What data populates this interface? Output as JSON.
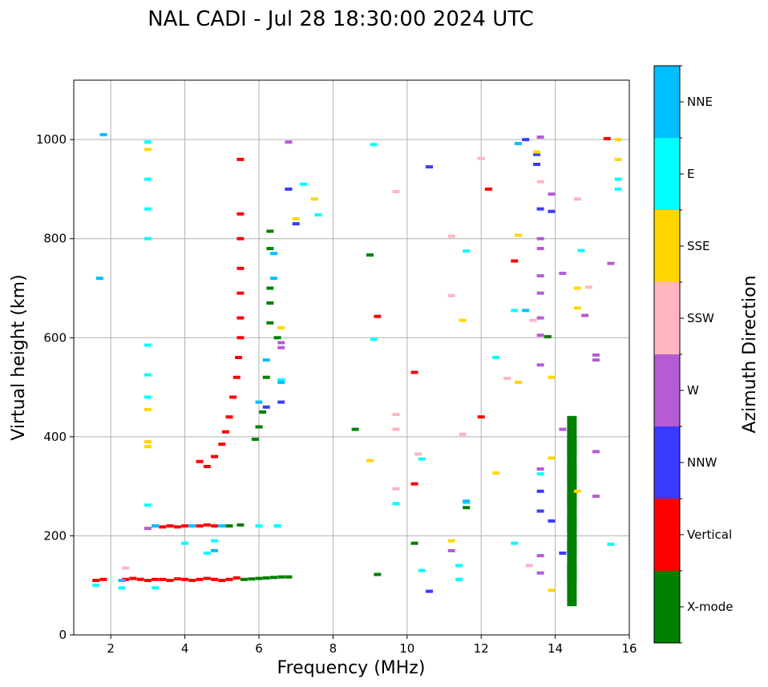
{
  "chart_data": {
    "type": "scatter",
    "title": "NAL CADI - Jul 28 18:30:00 2024 UTC",
    "xlabel": "Frequency (MHz)",
    "ylabel": "Virtual height (km)",
    "xlim": [
      1,
      16
    ],
    "ylim": [
      0,
      1120
    ],
    "xticks": [
      2,
      4,
      6,
      8,
      10,
      12,
      14,
      16
    ],
    "yticks": [
      0,
      200,
      400,
      600,
      800,
      1000
    ],
    "grid": true,
    "colorbar": {
      "label": "Azimuth Direction",
      "categories": [
        {
          "name": "X-mode",
          "color": "#008000"
        },
        {
          "name": "Vertical",
          "color": "#ff0000"
        },
        {
          "name": "NNW",
          "color": "#3a3aff"
        },
        {
          "name": "W",
          "color": "#b55bd6"
        },
        {
          "name": "SSW",
          "color": "#ffb6c1"
        },
        {
          "name": "SSE",
          "color": "#ffd700"
        },
        {
          "name": "E",
          "color": "#00ffff"
        },
        {
          "name": "NNE",
          "color": "#00bfff"
        }
      ]
    },
    "series": [
      {
        "name": "Vertical",
        "color": "#ff0000",
        "points": [
          [
            1.6,
            110
          ],
          [
            1.8,
            112
          ],
          [
            2.4,
            112
          ],
          [
            2.6,
            114
          ],
          [
            2.8,
            112
          ],
          [
            3.0,
            110
          ],
          [
            3.2,
            112
          ],
          [
            3.4,
            112
          ],
          [
            3.6,
            110
          ],
          [
            3.8,
            113
          ],
          [
            4.0,
            112
          ],
          [
            4.2,
            110
          ],
          [
            4.4,
            112
          ],
          [
            4.6,
            114
          ],
          [
            4.8,
            112
          ],
          [
            5.0,
            110
          ],
          [
            5.2,
            112
          ],
          [
            5.4,
            115
          ],
          [
            3.2,
            220
          ],
          [
            3.4,
            218
          ],
          [
            3.6,
            220
          ],
          [
            3.8,
            218
          ],
          [
            4.0,
            220
          ],
          [
            4.4,
            220
          ],
          [
            4.6,
            222
          ],
          [
            4.8,
            220
          ],
          [
            4.4,
            350
          ],
          [
            4.6,
            340
          ],
          [
            4.8,
            360
          ],
          [
            5.0,
            385
          ],
          [
            5.1,
            410
          ],
          [
            5.2,
            440
          ],
          [
            5.3,
            480
          ],
          [
            5.4,
            520
          ],
          [
            5.45,
            560
          ],
          [
            5.5,
            600
          ],
          [
            5.5,
            640
          ],
          [
            5.5,
            690
          ],
          [
            5.5,
            740
          ],
          [
            5.5,
            800
          ],
          [
            5.5,
            850
          ],
          [
            5.5,
            960
          ],
          [
            9.2,
            643
          ],
          [
            10.2,
            305
          ],
          [
            10.2,
            530
          ],
          [
            12.0,
            440
          ],
          [
            12.2,
            900
          ],
          [
            12.9,
            755
          ],
          [
            15.4,
            1002
          ]
        ]
      },
      {
        "name": "X-mode",
        "color": "#008000",
        "points": [
          [
            5.6,
            112
          ],
          [
            5.8,
            113
          ],
          [
            6.0,
            114
          ],
          [
            6.2,
            115
          ],
          [
            6.4,
            116
          ],
          [
            6.6,
            117
          ],
          [
            6.8,
            117
          ],
          [
            5.2,
            220
          ],
          [
            5.5,
            222
          ],
          [
            6.5,
            220
          ],
          [
            5.9,
            395
          ],
          [
            6.0,
            420
          ],
          [
            6.1,
            450
          ],
          [
            6.2,
            520
          ],
          [
            6.3,
            630
          ],
          [
            6.3,
            670
          ],
          [
            6.3,
            700
          ],
          [
            6.3,
            780
          ],
          [
            6.3,
            815
          ],
          [
            6.5,
            600
          ],
          [
            8.6,
            415
          ],
          [
            9.2,
            122
          ],
          [
            9.0,
            767
          ],
          [
            10.2,
            185
          ],
          [
            11.6,
            257
          ],
          [
            13.8,
            602
          ],
          [
            14.45,
            100
          ],
          [
            14.45,
            150
          ],
          [
            14.45,
            200
          ],
          [
            14.45,
            250
          ],
          [
            14.45,
            300
          ],
          [
            14.45,
            350
          ],
          [
            14.45,
            400
          ]
        ]
      },
      {
        "name": "NNW",
        "color": "#3a3aff",
        "points": [
          [
            6.2,
            460
          ],
          [
            6.6,
            470
          ],
          [
            6.8,
            900
          ],
          [
            7.0,
            830
          ],
          [
            10.6,
            88
          ],
          [
            10.6,
            945
          ],
          [
            13.2,
            1000
          ],
          [
            13.5,
            970
          ],
          [
            13.5,
            950
          ],
          [
            13.6,
            250
          ],
          [
            13.6,
            290
          ],
          [
            13.6,
            860
          ],
          [
            13.9,
            230
          ],
          [
            13.9,
            855
          ],
          [
            14.2,
            165
          ]
        ]
      },
      {
        "name": "W",
        "color": "#b55bd6",
        "points": [
          [
            3.0,
            215
          ],
          [
            6.6,
            590
          ],
          [
            6.6,
            580
          ],
          [
            6.8,
            995
          ],
          [
            11.2,
            170
          ],
          [
            13.6,
            1005
          ],
          [
            13.6,
            800
          ],
          [
            13.6,
            780
          ],
          [
            13.6,
            725
          ],
          [
            13.6,
            690
          ],
          [
            13.6,
            640
          ],
          [
            13.6,
            605
          ],
          [
            13.6,
            545
          ],
          [
            13.6,
            335
          ],
          [
            13.6,
            160
          ],
          [
            13.6,
            125
          ],
          [
            13.9,
            890
          ],
          [
            14.2,
            730
          ],
          [
            14.2,
            415
          ],
          [
            14.8,
            645
          ],
          [
            15.1,
            565
          ],
          [
            15.1,
            555
          ],
          [
            15.1,
            370
          ],
          [
            15.1,
            280
          ],
          [
            15.5,
            750
          ]
        ]
      },
      {
        "name": "SSW",
        "color": "#ffb6c1",
        "points": [
          [
            2.4,
            135
          ],
          [
            9.7,
            895
          ],
          [
            9.7,
            445
          ],
          [
            9.7,
            415
          ],
          [
            9.7,
            295
          ],
          [
            10.3,
            365
          ],
          [
            11.2,
            805
          ],
          [
            11.2,
            685
          ],
          [
            11.5,
            405
          ],
          [
            12.0,
            962
          ],
          [
            12.7,
            518
          ],
          [
            13.3,
            140
          ],
          [
            13.6,
            915
          ],
          [
            13.4,
            635
          ],
          [
            14.6,
            880
          ],
          [
            14.9,
            702
          ]
        ]
      },
      {
        "name": "SSE",
        "color": "#ffd700",
        "points": [
          [
            3.0,
            980
          ],
          [
            3.0,
            455
          ],
          [
            3.0,
            390
          ],
          [
            3.0,
            380
          ],
          [
            6.6,
            620
          ],
          [
            7.0,
            840
          ],
          [
            7.5,
            880
          ],
          [
            9.0,
            352
          ],
          [
            11.2,
            190
          ],
          [
            11.5,
            635
          ],
          [
            12.4,
            327
          ],
          [
            13.0,
            807
          ],
          [
            13.0,
            510
          ],
          [
            13.5,
            975
          ],
          [
            13.9,
            520
          ],
          [
            13.9,
            357
          ],
          [
            13.9,
            90
          ],
          [
            14.6,
            700
          ],
          [
            14.6,
            660
          ],
          [
            14.6,
            290
          ],
          [
            15.7,
            1000
          ],
          [
            15.7,
            960
          ]
        ]
      },
      {
        "name": "E",
        "color": "#00ffff",
        "points": [
          [
            1.6,
            100
          ],
          [
            2.3,
            95
          ],
          [
            3.0,
            995
          ],
          [
            3.0,
            920
          ],
          [
            3.0,
            860
          ],
          [
            3.0,
            800
          ],
          [
            3.0,
            585
          ],
          [
            3.0,
            525
          ],
          [
            3.0,
            480
          ],
          [
            3.0,
            262
          ],
          [
            3.2,
            95
          ],
          [
            4.0,
            185
          ],
          [
            4.6,
            165
          ],
          [
            4.8,
            190
          ],
          [
            6.0,
            220
          ],
          [
            6.5,
            220
          ],
          [
            6.6,
            515
          ],
          [
            7.2,
            910
          ],
          [
            7.6,
            848
          ],
          [
            9.1,
            990
          ],
          [
            9.1,
            597
          ],
          [
            9.7,
            265
          ],
          [
            10.4,
            355
          ],
          [
            10.4,
            130
          ],
          [
            11.4,
            140
          ],
          [
            11.4,
            112
          ],
          [
            11.6,
            267
          ],
          [
            11.6,
            775
          ],
          [
            12.4,
            560
          ],
          [
            12.9,
            655
          ],
          [
            12.9,
            185
          ],
          [
            13.6,
            325
          ],
          [
            14.7,
            776
          ],
          [
            15.5,
            183
          ],
          [
            15.7,
            920
          ],
          [
            15.7,
            900
          ]
        ]
      },
      {
        "name": "NNE",
        "color": "#00bfff",
        "points": [
          [
            1.8,
            1010
          ],
          [
            1.7,
            720
          ],
          [
            2.3,
            110
          ],
          [
            3.2,
            220
          ],
          [
            4.2,
            220
          ],
          [
            4.8,
            170
          ],
          [
            5.0,
            220
          ],
          [
            6.0,
            470
          ],
          [
            6.2,
            555
          ],
          [
            6.4,
            720
          ],
          [
            6.4,
            770
          ],
          [
            6.6,
            510
          ],
          [
            11.6,
            270
          ],
          [
            13.0,
            992
          ],
          [
            13.2,
            655
          ]
        ]
      }
    ]
  }
}
